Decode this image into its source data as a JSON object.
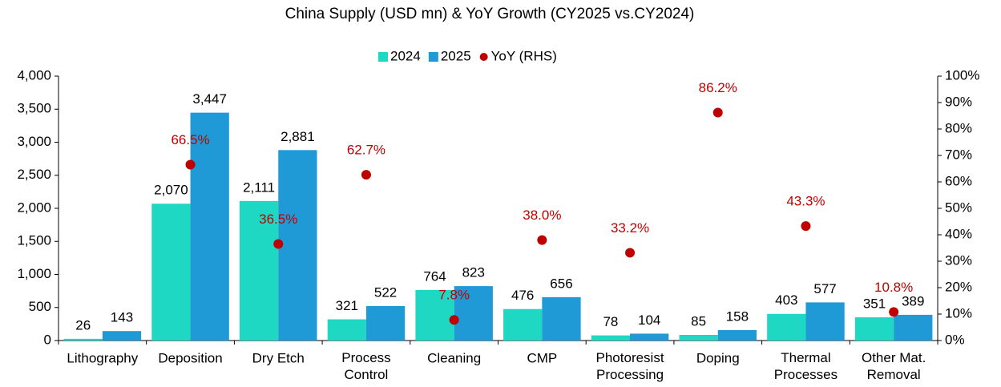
{
  "chart_data": {
    "type": "bar",
    "title": "China Supply (USD mn) & YoY Growth (CY2025 vs.CY2024)",
    "categories": [
      "Lithography",
      "Deposition",
      "Dry Etch",
      "Process\nControl",
      "Cleaning",
      "CMP",
      "Photoresist\nProcessing",
      "Doping",
      "Thermal\nProcesses",
      "Other Mat.\nRemoval"
    ],
    "series": [
      {
        "name": "2024",
        "type": "bar",
        "color": "#1fd8c3",
        "values": [
          26,
          2070,
          2111,
          321,
          764,
          476,
          78,
          85,
          403,
          351
        ],
        "value_labels": [
          "26",
          "2,070",
          "2,111",
          "321",
          "764",
          "476",
          "78",
          "85",
          "403",
          "351"
        ]
      },
      {
        "name": "2025",
        "type": "bar",
        "color": "#1f9ad6",
        "values": [
          143,
          3447,
          2881,
          522,
          823,
          656,
          104,
          158,
          577,
          389
        ],
        "value_labels": [
          "143",
          "3,447",
          "2,881",
          "522",
          "823",
          "656",
          "104",
          "158",
          "577",
          "389"
        ]
      },
      {
        "name": "YoY (RHS)",
        "type": "scatter",
        "axis": "y2",
        "color": "#c00000",
        "values": [
          null,
          66.5,
          36.5,
          62.7,
          7.8,
          38.0,
          33.2,
          86.2,
          43.3,
          10.8
        ],
        "value_labels": [
          null,
          "66.5%",
          "36.5%",
          "62.7%",
          "7.8%",
          "38.0%",
          "33.2%",
          "86.2%",
          "43.3%",
          "10.8%"
        ]
      }
    ],
    "ylim": [
      0,
      4000
    ],
    "yticks": [
      0,
      500,
      {
        "value": 1000,
        "label": "1,000"
      },
      {
        "value": 1500,
        "label": "1,500"
      },
      {
        "value": 2000,
        "label": "2,000"
      },
      {
        "value": 2500,
        "label": "2,500"
      },
      {
        "value": 3000,
        "label": "3,000"
      },
      {
        "value": 3500,
        "label": "3,500"
      },
      {
        "value": 4000,
        "label": "4,000"
      }
    ],
    "y2lim": [
      0,
      100
    ],
    "y2ticks": [
      {
        "value": 0,
        "label": "0%"
      },
      {
        "value": 10,
        "label": "10%"
      },
      {
        "value": 20,
        "label": "20%"
      },
      {
        "value": 30,
        "label": "30%"
      },
      {
        "value": 40,
        "label": "40%"
      },
      {
        "value": 50,
        "label": "50%"
      },
      {
        "value": 60,
        "label": "60%"
      },
      {
        "value": 70,
        "label": "70%"
      },
      {
        "value": 80,
        "label": "80%"
      },
      {
        "value": 90,
        "label": "90%"
      },
      {
        "value": 100,
        "label": "100%"
      }
    ],
    "legend": "top",
    "grid": false
  }
}
